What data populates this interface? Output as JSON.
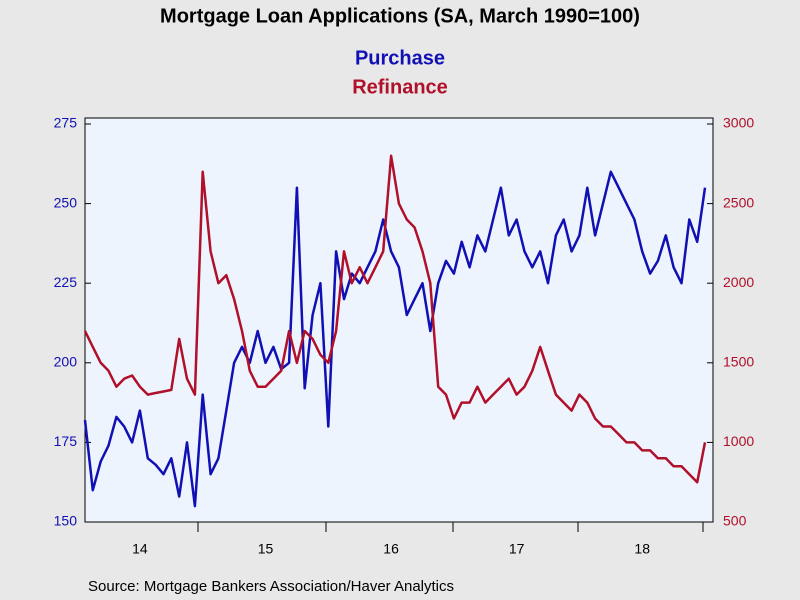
{
  "chart_data": {
    "type": "line",
    "title": "Mortgage Loan Applications (SA, March 1990=100)",
    "source": "Source:  Mortgage Bankers Association/Haver Analytics",
    "categories": [
      null,
      null,
      null,
      null,
      null,
      null,
      null,
      "14",
      null,
      null,
      null,
      null,
      null,
      null,
      null,
      null,
      null,
      null,
      null,
      null,
      null,
      null,
      null,
      "15",
      null,
      null,
      null,
      null,
      null,
      null,
      null,
      null,
      null,
      null,
      null,
      null,
      null,
      null,
      null,
      "16",
      null,
      null,
      null,
      null,
      null,
      null,
      null,
      null,
      null,
      null,
      null,
      null,
      null,
      null,
      null,
      "17",
      null,
      null,
      null,
      null,
      null,
      null,
      null,
      null,
      null,
      null,
      null,
      null,
      null,
      null,
      null,
      "18",
      null,
      null,
      null,
      null,
      null,
      null,
      null,
      null
    ],
    "series": [
      {
        "name": "Purchase",
        "color": "#1010b4",
        "axis": "y",
        "values": [
          182,
          160,
          169,
          174,
          183,
          180,
          175,
          185,
          170,
          168,
          165,
          170,
          158,
          175,
          155,
          190,
          165,
          170,
          185,
          200,
          205,
          200,
          210,
          200,
          205,
          198,
          200,
          255,
          192,
          215,
          225,
          180,
          235,
          220,
          228,
          225,
          230,
          235,
          245,
          235,
          230,
          215,
          220,
          225,
          210,
          225,
          232,
          228,
          238,
          230,
          240,
          235,
          245,
          255,
          240,
          245,
          235,
          230,
          235,
          225,
          240,
          245,
          235,
          240,
          255,
          240,
          250,
          260,
          255,
          250,
          245,
          235,
          228,
          232,
          240,
          230,
          225,
          245,
          238,
          255
        ]
      },
      {
        "name": "Refinance",
        "color": "#b0102a",
        "axis": "y2",
        "values": [
          1700,
          1600,
          1500,
          1450,
          1350,
          1400,
          1420,
          1350,
          1300,
          1310,
          1320,
          1330,
          1650,
          1400,
          1300,
          2700,
          2200,
          2000,
          2050,
          1900,
          1700,
          1450,
          1350,
          1350,
          1400,
          1450,
          1700,
          1500,
          1700,
          1650,
          1550,
          1500,
          1700,
          2200,
          2000,
          2100,
          2000,
          2100,
          2200,
          2800,
          2500,
          2400,
          2350,
          2200,
          2000,
          1350,
          1300,
          1150,
          1250,
          1250,
          1350,
          1250,
          1300,
          1350,
          1400,
          1300,
          1350,
          1450,
          1600,
          1450,
          1300,
          1250,
          1200,
          1300,
          1250,
          1150,
          1100,
          1100,
          1050,
          1000,
          1000,
          950,
          950,
          900,
          900,
          850,
          850,
          800,
          750,
          1000
        ]
      }
    ],
    "ylim": [
      150,
      275
    ],
    "yticks": [
      150,
      175,
      200,
      225,
      250,
      275
    ],
    "y2lim": [
      500,
      3000
    ],
    "y2ticks": [
      500,
      1000,
      1500,
      2000,
      2500,
      3000
    ]
  }
}
